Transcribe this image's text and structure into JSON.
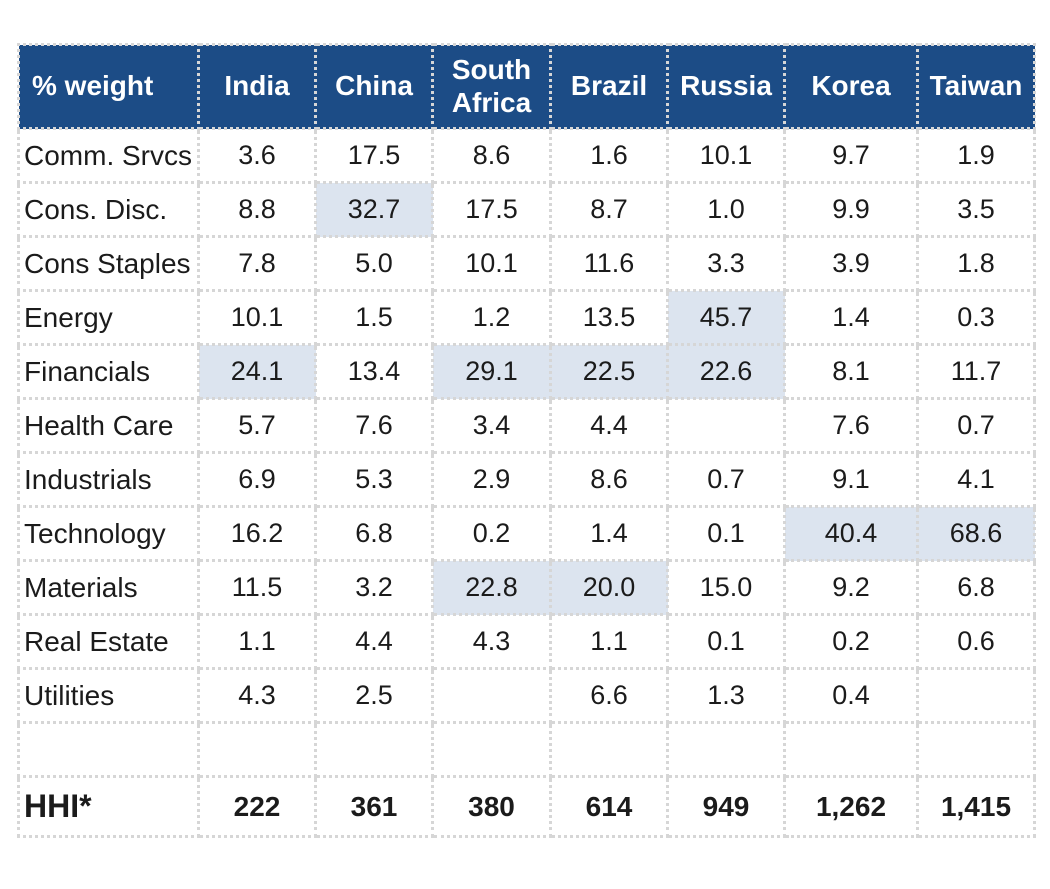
{
  "table": {
    "corner_label": "% weight",
    "columns": [
      "India",
      "China",
      "South Africa",
      "Brazil",
      "Russia",
      "Korea",
      "Taiwan"
    ],
    "rows": [
      {
        "label": "Comm. Srvcs",
        "values": [
          "3.6",
          "17.5",
          "8.6",
          "1.6",
          "10.1",
          "9.7",
          "1.9"
        ],
        "highlight": [
          false,
          false,
          false,
          false,
          false,
          false,
          false
        ]
      },
      {
        "label": "Cons. Disc.",
        "values": [
          "8.8",
          "32.7",
          "17.5",
          "8.7",
          "1.0",
          "9.9",
          "3.5"
        ],
        "highlight": [
          false,
          true,
          false,
          false,
          false,
          false,
          false
        ]
      },
      {
        "label": "Cons Staples",
        "values": [
          "7.8",
          "5.0",
          "10.1",
          "11.6",
          "3.3",
          "3.9",
          "1.8"
        ],
        "highlight": [
          false,
          false,
          false,
          false,
          false,
          false,
          false
        ]
      },
      {
        "label": "Energy",
        "values": [
          "10.1",
          "1.5",
          "1.2",
          "13.5",
          "45.7",
          "1.4",
          "0.3"
        ],
        "highlight": [
          false,
          false,
          false,
          false,
          true,
          false,
          false
        ]
      },
      {
        "label": "Financials",
        "values": [
          "24.1",
          "13.4",
          "29.1",
          "22.5",
          "22.6",
          "8.1",
          "11.7"
        ],
        "highlight": [
          true,
          false,
          true,
          true,
          true,
          false,
          false
        ]
      },
      {
        "label": "Health Care",
        "values": [
          "5.7",
          "7.6",
          "3.4",
          "4.4",
          "",
          "7.6",
          "0.7"
        ],
        "highlight": [
          false,
          false,
          false,
          false,
          false,
          false,
          false
        ]
      },
      {
        "label": "Industrials",
        "values": [
          "6.9",
          "5.3",
          "2.9",
          "8.6",
          "0.7",
          "9.1",
          "4.1"
        ],
        "highlight": [
          false,
          false,
          false,
          false,
          false,
          false,
          false
        ]
      },
      {
        "label": "Technology",
        "values": [
          "16.2",
          "6.8",
          "0.2",
          "1.4",
          "0.1",
          "40.4",
          "68.6"
        ],
        "highlight": [
          false,
          false,
          false,
          false,
          false,
          true,
          true
        ]
      },
      {
        "label": "Materials",
        "values": [
          "11.5",
          "3.2",
          "22.8",
          "20.0",
          "15.0",
          "9.2",
          "6.8"
        ],
        "highlight": [
          false,
          false,
          true,
          true,
          false,
          false,
          false
        ]
      },
      {
        "label": "Real Estate",
        "values": [
          "1.1",
          "4.4",
          "4.3",
          "1.1",
          "0.1",
          "0.2",
          "0.6"
        ],
        "highlight": [
          false,
          false,
          false,
          false,
          false,
          false,
          false
        ]
      },
      {
        "label": "Utilities",
        "values": [
          "4.3",
          "2.5",
          "",
          "6.6",
          "1.3",
          "0.4",
          ""
        ],
        "highlight": [
          false,
          false,
          false,
          false,
          false,
          false,
          false
        ]
      }
    ],
    "hhi": {
      "label": "HHI*",
      "values": [
        "222",
        "361",
        "380",
        "614",
        "949",
        "1,262",
        "1,415"
      ]
    }
  },
  "colors": {
    "header_bg": "#1c4c86",
    "header_text": "#ffffff",
    "highlight": "#dce4ef",
    "grid": "#d6d6d6"
  }
}
